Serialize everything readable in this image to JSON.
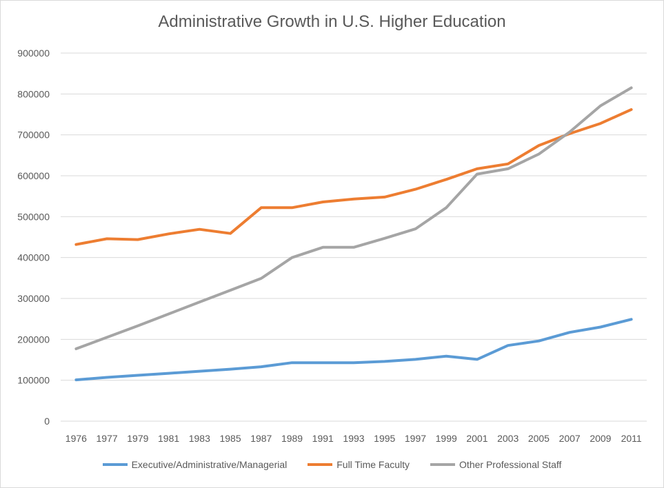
{
  "chart_data": {
    "type": "line",
    "title": "Administrative Growth in U.S. Higher Education",
    "xlabel": "",
    "ylabel": "",
    "categories": [
      "1976",
      "1977",
      "1979",
      "1981",
      "1983",
      "1985",
      "1987",
      "1989",
      "1991",
      "1993",
      "1995",
      "1997",
      "1999",
      "2001",
      "2003",
      "2005",
      "2007",
      "2009",
      "2011"
    ],
    "ylim": [
      0,
      900000
    ],
    "yticks": [
      "0",
      "100000",
      "200000",
      "300000",
      "400000",
      "500000",
      "600000",
      "700000",
      "800000",
      "900000"
    ],
    "grid": true,
    "legend_position": "bottom",
    "series": [
      {
        "name": "Executive/Administrative/Managerial",
        "color": "#5b9bd5",
        "values": [
          101000,
          107000,
          112000,
          117000,
          122000,
          127000,
          133000,
          143000,
          143000,
          143000,
          146000,
          151000,
          159000,
          151000,
          185000,
          196000,
          217000,
          230000,
          249000
        ]
      },
      {
        "name": "Full Time Faculty",
        "color": "#ed7d31",
        "values": [
          432000,
          446000,
          444000,
          458000,
          469000,
          459000,
          522000,
          522000,
          536000,
          543000,
          548000,
          567000,
          591000,
          617000,
          629000,
          674000,
          703000,
          728000,
          762000
        ]
      },
      {
        "name": "Other Professional Staff",
        "color": "#a5a5a5",
        "values": [
          177000,
          205000,
          233000,
          262000,
          291000,
          320000,
          349000,
          400000,
          425000,
          425000,
          447000,
          470000,
          522000,
          604000,
          617000,
          653000,
          707000,
          771000,
          815000
        ]
      }
    ]
  }
}
